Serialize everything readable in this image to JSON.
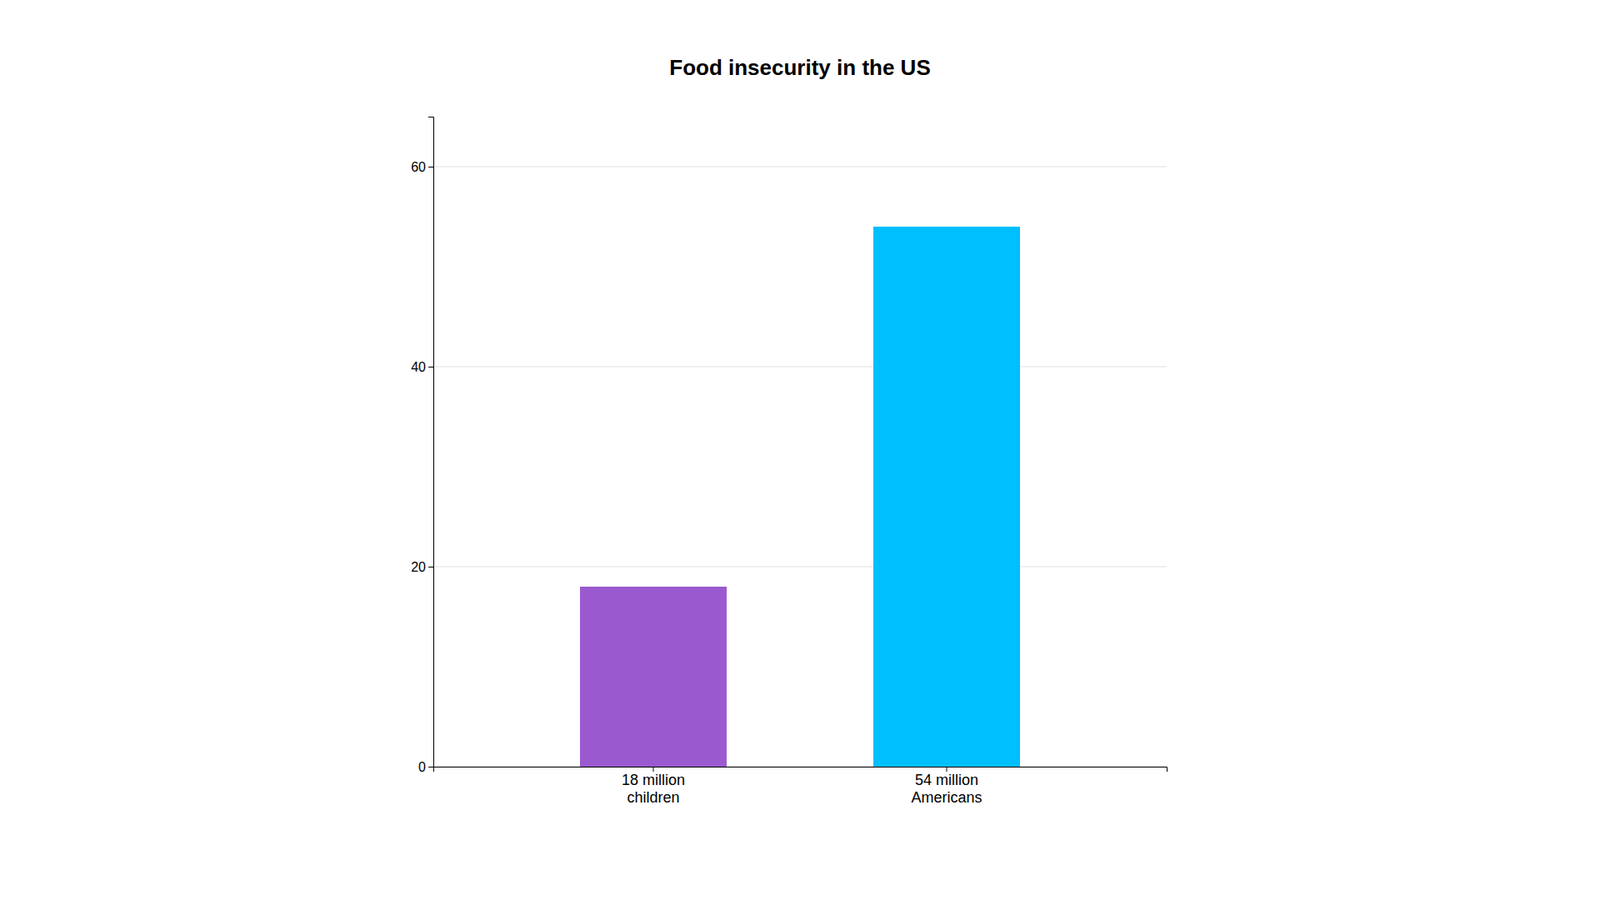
{
  "chart_data": {
    "type": "bar",
    "title": "Food insecurity in the US",
    "categories": [
      "18 million\nchildren",
      "54 million\nAmericans"
    ],
    "values": [
      18,
      54
    ],
    "colors": [
      "#9B59D0",
      "#00BFFF"
    ],
    "ylim": [
      0,
      65
    ],
    "yticks": [
      0,
      20,
      40,
      60
    ],
    "grid": true
  }
}
